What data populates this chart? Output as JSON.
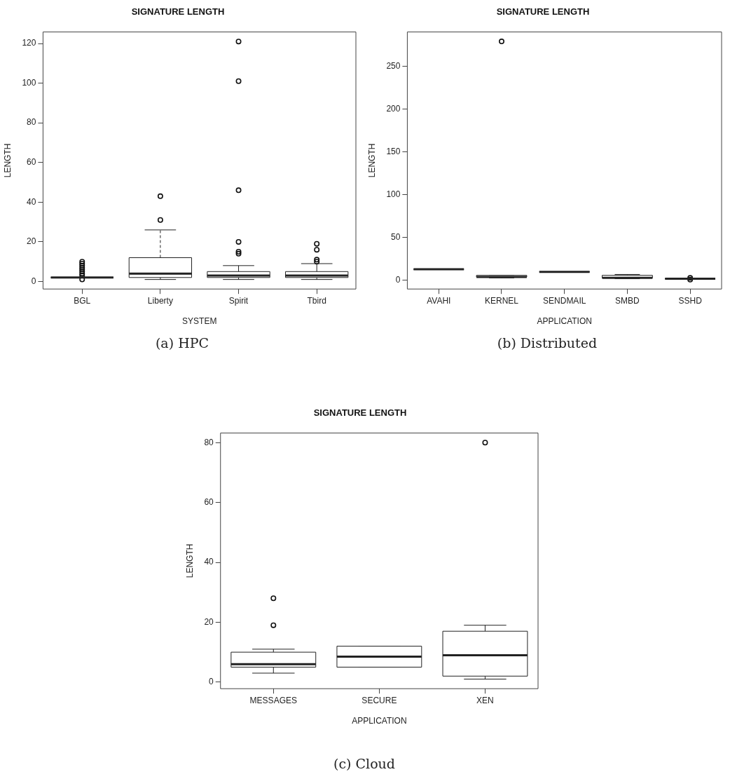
{
  "chart_data": [
    {
      "type": "box",
      "title": "SIGNATURE LENGTH",
      "xlabel": "SYSTEM",
      "ylabel": "LENGTH",
      "categories": [
        "BGL",
        "Liberty",
        "Spirit",
        "Tbird"
      ],
      "boxes": [
        {
          "low": 2,
          "q1": 2,
          "median": 2,
          "q3": 2,
          "high": 2,
          "outliers": [
            1,
            3,
            4,
            5,
            6,
            7,
            8,
            9,
            10
          ]
        },
        {
          "low": 1,
          "q1": 2,
          "median": 4,
          "q3": 12,
          "high": 26,
          "outliers": [
            31,
            43
          ]
        },
        {
          "low": 1,
          "q1": 2,
          "median": 3,
          "q3": 5,
          "high": 8,
          "outliers": [
            14,
            15,
            20,
            46,
            101,
            121
          ]
        },
        {
          "low": 1,
          "q1": 2,
          "median": 3,
          "q3": 5,
          "high": 9,
          "outliers": [
            10,
            11,
            16,
            19
          ]
        }
      ],
      "ylim": [
        -3.8,
        125.8
      ],
      "yticks": [
        0,
        20,
        40,
        60,
        80,
        100,
        120
      ],
      "annotations": [
        "(a) HPC"
      ]
    },
    {
      "type": "box",
      "title": "SIGNATURE LENGTH",
      "xlabel": "APPLICATION",
      "ylabel": "LENGTH",
      "categories": [
        "AVAHI",
        "KERNEL",
        "SENDMAIL",
        "SMBD",
        "SSHD"
      ],
      "boxes": [
        {
          "low": 13,
          "q1": 13,
          "median": 13,
          "q3": 13,
          "high": 13
        },
        {
          "low": 3,
          "q1": 4,
          "median": 4,
          "q3": 6,
          "high": 6,
          "outliers": [
            279
          ]
        },
        {
          "low": 10,
          "q1": 10,
          "median": 10,
          "q3": 10,
          "high": 10
        },
        {
          "low": 2,
          "q1": 3,
          "median": 3,
          "q3": 6,
          "high": 7
        },
        {
          "low": 2,
          "q1": 2,
          "median": 2,
          "q3": 2,
          "high": 2,
          "outliers": [
            1,
            3
          ]
        }
      ],
      "ylim": [
        -10,
        290
      ],
      "yticks": [
        0,
        50,
        100,
        150,
        200,
        250
      ],
      "annotations": [
        "(b) Distributed"
      ]
    },
    {
      "type": "box",
      "title": "SIGNATURE LENGTH",
      "xlabel": "APPLICATION",
      "ylabel": "LENGTH",
      "categories": [
        "MESSAGES",
        "SECURE",
        "XEN"
      ],
      "boxes": [
        {
          "low": 3,
          "q1": 5,
          "median": 6,
          "q3": 10,
          "high": 11,
          "outliers": [
            19,
            28
          ]
        },
        {
          "low": 5,
          "q1": 5,
          "median": 8.5,
          "q3": 12,
          "high": 12
        },
        {
          "low": 1,
          "q1": 2,
          "median": 9,
          "q3": 17,
          "high": 19,
          "outliers": [
            80
          ]
        }
      ],
      "ylim": [
        -2.2,
        83.2
      ],
      "yticks": [
        0,
        20,
        40,
        60,
        80
      ],
      "annotations": [
        "(c) Cloud"
      ]
    }
  ]
}
